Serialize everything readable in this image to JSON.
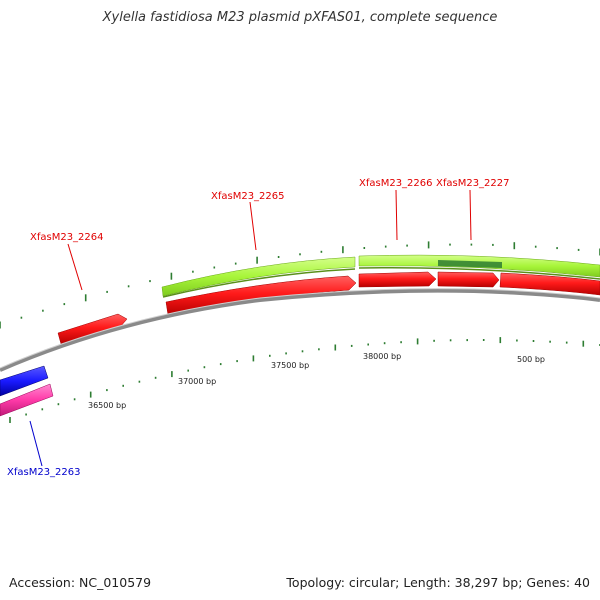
{
  "title": "Xylella fastidiosa M23 plasmid pXFAS01, complete sequence",
  "footer": {
    "accession": "Accession: NC_010579",
    "summary": "Topology: circular; Length: 38,297 bp; Genes: 40"
  },
  "colors": {
    "backbone": "#8a8a8a",
    "gene_red": "#ff1a1a",
    "gene_blue": "#1a1aff",
    "gene_pink": "#ff3aa8",
    "gc_green": "#a8f53a",
    "gc_dark_green": "#2e7d32",
    "tick_green": "#2e7d32",
    "label_red": "#e00000",
    "label_blue": "#0000cc",
    "scale_text": "#222222"
  },
  "scale_labels": [
    "36500 bp",
    "37000 bp",
    "37500 bp",
    "38000 bp",
    "500 bp"
  ],
  "genes": [
    {
      "label": "XfasM23_2263",
      "strand": "reverse",
      "color_key": "label_blue"
    },
    {
      "label": "XfasM23_2264",
      "strand": "forward",
      "color_key": "label_red"
    },
    {
      "label": "XfasM23_2265",
      "strand": "forward",
      "color_key": "label_red"
    },
    {
      "label": "XfasM23_2266",
      "strand": "forward",
      "color_key": "label_red"
    },
    {
      "label": "XfasM23_2227",
      "strand": "forward",
      "color_key": "label_red"
    }
  ]
}
